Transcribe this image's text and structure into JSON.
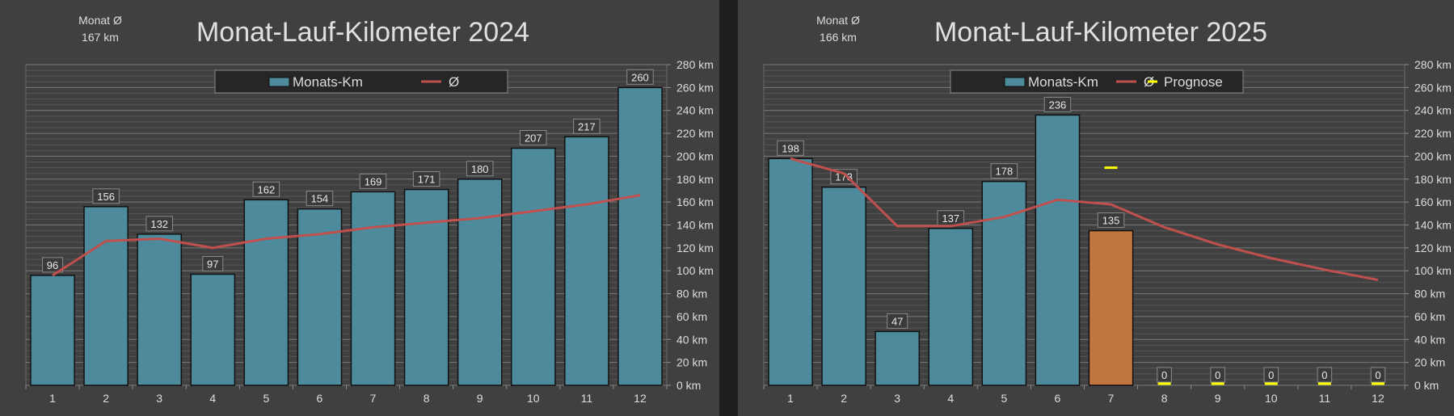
{
  "chart_data": [
    {
      "type": "bar",
      "title": "Monat-Lauf-Kilometer 2024",
      "avg_label": "Monat Ø",
      "avg_value": "167 km",
      "categories": [
        "1",
        "2",
        "3",
        "4",
        "5",
        "6",
        "7",
        "8",
        "9",
        "10",
        "11",
        "12"
      ],
      "y_ticks": [
        "0 km",
        "20 km",
        "40 km",
        "60 km",
        "80 km",
        "100 km",
        "120 km",
        "140 km",
        "160 km",
        "180 km",
        "200 km",
        "220 km",
        "240 km",
        "260 km",
        "280 km"
      ],
      "ylim": [
        0,
        280
      ],
      "grid": true,
      "legend_position": "top-center",
      "colors": {
        "bar": "#4d8b9c",
        "line": "#c0504d",
        "forecast": "#ffff00"
      },
      "series": [
        {
          "name": "Monats-Km",
          "type": "bar",
          "values": [
            96,
            156,
            132,
            97,
            162,
            154,
            169,
            171,
            180,
            207,
            217,
            260
          ]
        },
        {
          "name": "Ø",
          "type": "line",
          "values": [
            96,
            126,
            128,
            120,
            128,
            132,
            138,
            142,
            146,
            152,
            158,
            166
          ]
        }
      ]
    },
    {
      "type": "bar",
      "title": "Monat-Lauf-Kilometer 2025",
      "avg_label": "Monat Ø",
      "avg_value": "166 km",
      "categories": [
        "1",
        "2",
        "3",
        "4",
        "5",
        "6",
        "7",
        "8",
        "9",
        "10",
        "11",
        "12"
      ],
      "y_ticks": [
        "0 km",
        "20 km",
        "40 km",
        "60 km",
        "80 km",
        "100 km",
        "120 km",
        "140 km",
        "160 km",
        "180 km",
        "200 km",
        "220 km",
        "240 km",
        "260 km",
        "280 km"
      ],
      "ylim": [
        0,
        280
      ],
      "grid": true,
      "legend_position": "top-center",
      "colors": {
        "bar": "#4d8b9c",
        "highlight": "#c07840",
        "line": "#c0504d",
        "forecast": "#ffff00"
      },
      "highlight_index": 6,
      "series": [
        {
          "name": "Monats-Km",
          "type": "bar",
          "values": [
            198,
            173,
            47,
            137,
            178,
            236,
            135,
            0,
            0,
            0,
            0,
            0
          ]
        },
        {
          "name": "Ø",
          "type": "line",
          "values": [
            198,
            185,
            139,
            139,
            147,
            162,
            158,
            138,
            123,
            111,
            101,
            92
          ]
        },
        {
          "name": "Prognose",
          "type": "marker",
          "values": [
            null,
            null,
            null,
            null,
            null,
            null,
            190,
            0,
            0,
            0,
            0,
            0
          ]
        }
      ]
    }
  ]
}
